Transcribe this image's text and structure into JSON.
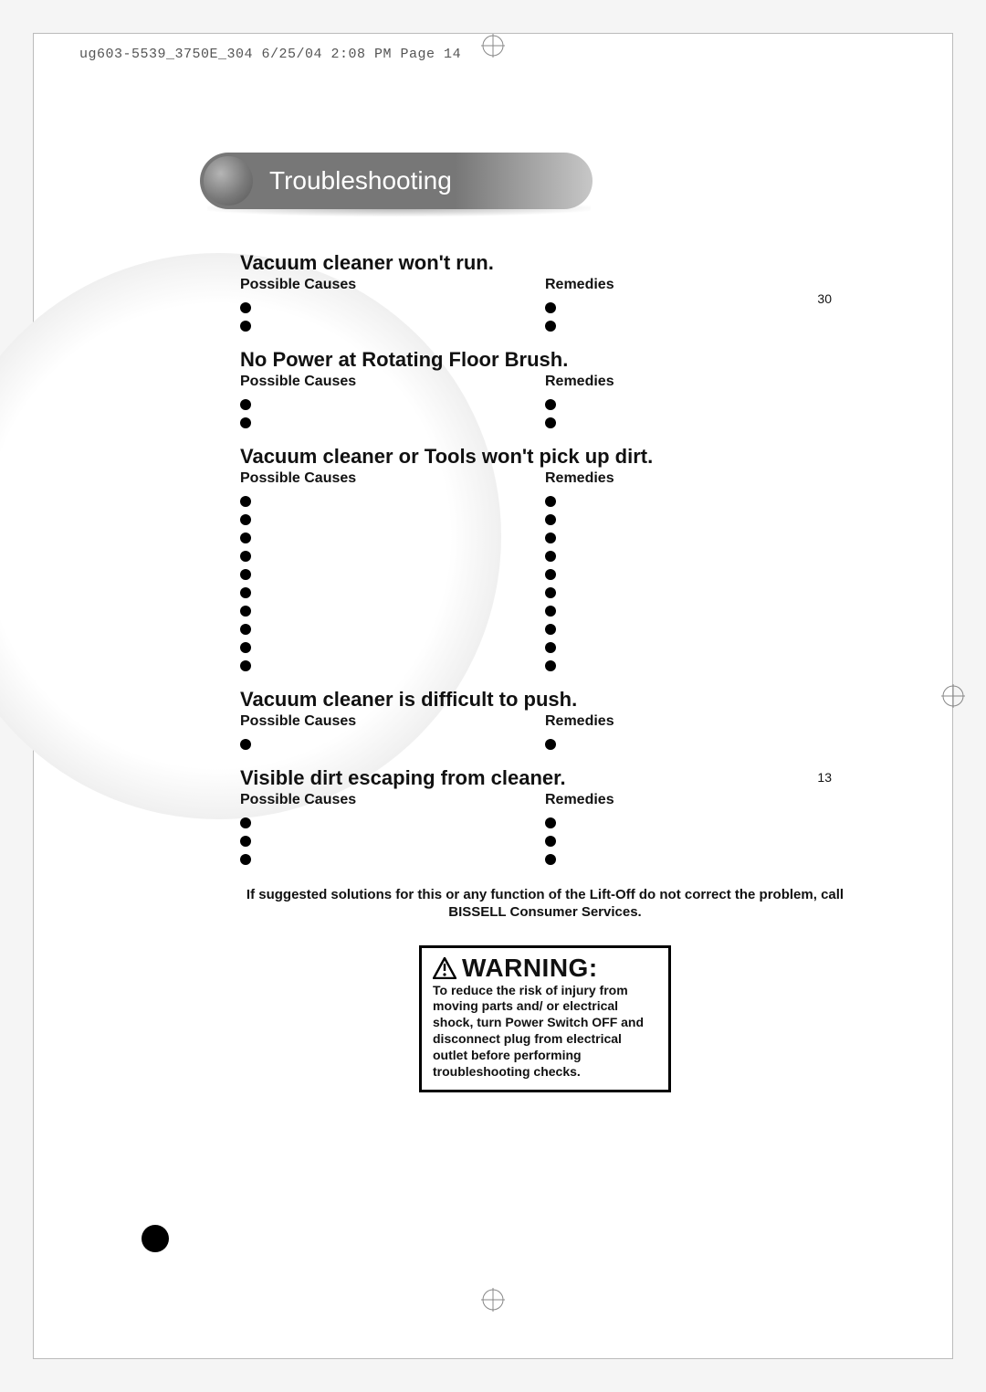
{
  "print_mark": "ug603-5539_3750E_304  6/25/04  2:08 PM  Page 14",
  "header": {
    "title": "Troubleshooting"
  },
  "labels": {
    "possible_causes": "Possible Causes",
    "remedies": "Remedies"
  },
  "page_refs": {
    "ref1": "30",
    "ref2": "13"
  },
  "sections": [
    {
      "title": "Vacuum cleaner won't run.",
      "cause_count": 2,
      "remedy_count": 2
    },
    {
      "title": "No Power at Rotating Floor Brush.",
      "cause_count": 2,
      "remedy_count": 2
    },
    {
      "title": "Vacuum cleaner or Tools won't pick up dirt.",
      "cause_count": 10,
      "remedy_count": 10
    },
    {
      "title": "Vacuum cleaner is difficult to push.",
      "cause_count": 1,
      "remedy_count": 1
    },
    {
      "title": "Visible dirt escaping from cleaner.",
      "cause_count": 3,
      "remedy_count": 3
    }
  ],
  "footnote": "If suggested solutions for this or any function of the Lift-Off do not correct the problem, call BISSELL Consumer Services.",
  "warning": {
    "title": "WARNING:",
    "body": "To reduce the risk of injury from moving parts and/ or electrical shock, turn Power Switch OFF and disconnect plug from electrical outlet before performing troubleshooting checks."
  },
  "colors": {
    "header_bar_dark": "#777777",
    "header_bar_light": "#c7c7c7",
    "page_bg": "#ffffff",
    "outer_bg": "#f5f5f5",
    "border": "#bbbbbb",
    "text": "#111111"
  }
}
